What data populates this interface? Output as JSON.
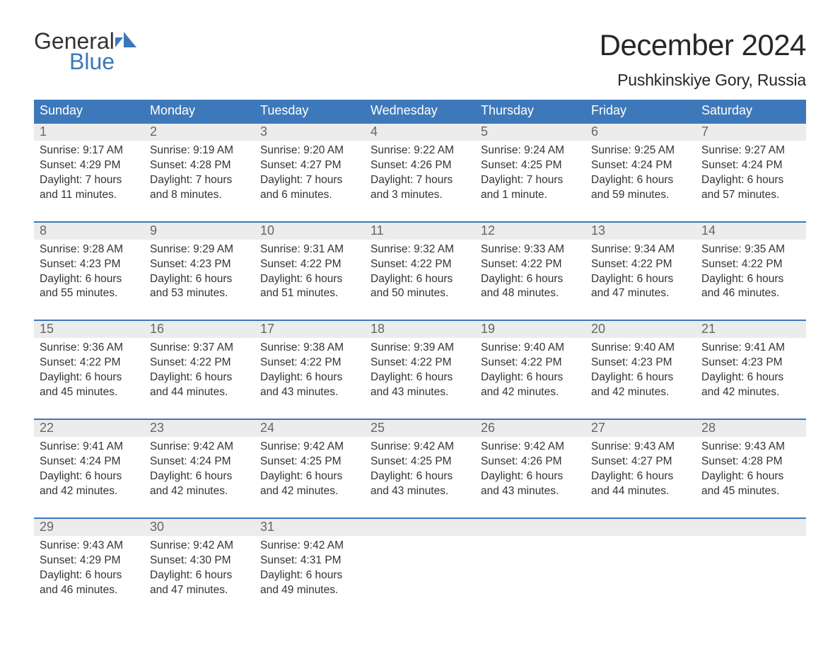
{
  "logo": {
    "word1": "General",
    "word2": "Blue",
    "word1_color": "#333333",
    "word2_color": "#3b78b8",
    "mark_color": "#3b78b8"
  },
  "header": {
    "month_title": "December 2024",
    "location": "Pushkinskiye Gory, Russia",
    "title_color": "#272727",
    "title_fontsize": 42,
    "location_fontsize": 23
  },
  "calendar": {
    "type": "table",
    "header_bg": "#3d79ba",
    "header_text_color": "#ffffff",
    "daynum_bg": "#ececec",
    "daynum_color": "#666666",
    "row_border_color": "#3d79ba",
    "cell_text_color": "#333333",
    "body_fontsize": 15.5,
    "columns": [
      "Sunday",
      "Monday",
      "Tuesday",
      "Wednesday",
      "Thursday",
      "Friday",
      "Saturday"
    ],
    "weeks": [
      [
        {
          "n": "1",
          "sr": "Sunrise: 9:17 AM",
          "ss": "Sunset: 4:29 PM",
          "d1": "Daylight: 7 hours",
          "d2": "and 11 minutes."
        },
        {
          "n": "2",
          "sr": "Sunrise: 9:19 AM",
          "ss": "Sunset: 4:28 PM",
          "d1": "Daylight: 7 hours",
          "d2": "and 8 minutes."
        },
        {
          "n": "3",
          "sr": "Sunrise: 9:20 AM",
          "ss": "Sunset: 4:27 PM",
          "d1": "Daylight: 7 hours",
          "d2": "and 6 minutes."
        },
        {
          "n": "4",
          "sr": "Sunrise: 9:22 AM",
          "ss": "Sunset: 4:26 PM",
          "d1": "Daylight: 7 hours",
          "d2": "and 3 minutes."
        },
        {
          "n": "5",
          "sr": "Sunrise: 9:24 AM",
          "ss": "Sunset: 4:25 PM",
          "d1": "Daylight: 7 hours",
          "d2": "and 1 minute."
        },
        {
          "n": "6",
          "sr": "Sunrise: 9:25 AM",
          "ss": "Sunset: 4:24 PM",
          "d1": "Daylight: 6 hours",
          "d2": "and 59 minutes."
        },
        {
          "n": "7",
          "sr": "Sunrise: 9:27 AM",
          "ss": "Sunset: 4:24 PM",
          "d1": "Daylight: 6 hours",
          "d2": "and 57 minutes."
        }
      ],
      [
        {
          "n": "8",
          "sr": "Sunrise: 9:28 AM",
          "ss": "Sunset: 4:23 PM",
          "d1": "Daylight: 6 hours",
          "d2": "and 55 minutes."
        },
        {
          "n": "9",
          "sr": "Sunrise: 9:29 AM",
          "ss": "Sunset: 4:23 PM",
          "d1": "Daylight: 6 hours",
          "d2": "and 53 minutes."
        },
        {
          "n": "10",
          "sr": "Sunrise: 9:31 AM",
          "ss": "Sunset: 4:22 PM",
          "d1": "Daylight: 6 hours",
          "d2": "and 51 minutes."
        },
        {
          "n": "11",
          "sr": "Sunrise: 9:32 AM",
          "ss": "Sunset: 4:22 PM",
          "d1": "Daylight: 6 hours",
          "d2": "and 50 minutes."
        },
        {
          "n": "12",
          "sr": "Sunrise: 9:33 AM",
          "ss": "Sunset: 4:22 PM",
          "d1": "Daylight: 6 hours",
          "d2": "and 48 minutes."
        },
        {
          "n": "13",
          "sr": "Sunrise: 9:34 AM",
          "ss": "Sunset: 4:22 PM",
          "d1": "Daylight: 6 hours",
          "d2": "and 47 minutes."
        },
        {
          "n": "14",
          "sr": "Sunrise: 9:35 AM",
          "ss": "Sunset: 4:22 PM",
          "d1": "Daylight: 6 hours",
          "d2": "and 46 minutes."
        }
      ],
      [
        {
          "n": "15",
          "sr": "Sunrise: 9:36 AM",
          "ss": "Sunset: 4:22 PM",
          "d1": "Daylight: 6 hours",
          "d2": "and 45 minutes."
        },
        {
          "n": "16",
          "sr": "Sunrise: 9:37 AM",
          "ss": "Sunset: 4:22 PM",
          "d1": "Daylight: 6 hours",
          "d2": "and 44 minutes."
        },
        {
          "n": "17",
          "sr": "Sunrise: 9:38 AM",
          "ss": "Sunset: 4:22 PM",
          "d1": "Daylight: 6 hours",
          "d2": "and 43 minutes."
        },
        {
          "n": "18",
          "sr": "Sunrise: 9:39 AM",
          "ss": "Sunset: 4:22 PM",
          "d1": "Daylight: 6 hours",
          "d2": "and 43 minutes."
        },
        {
          "n": "19",
          "sr": "Sunrise: 9:40 AM",
          "ss": "Sunset: 4:22 PM",
          "d1": "Daylight: 6 hours",
          "d2": "and 42 minutes."
        },
        {
          "n": "20",
          "sr": "Sunrise: 9:40 AM",
          "ss": "Sunset: 4:23 PM",
          "d1": "Daylight: 6 hours",
          "d2": "and 42 minutes."
        },
        {
          "n": "21",
          "sr": "Sunrise: 9:41 AM",
          "ss": "Sunset: 4:23 PM",
          "d1": "Daylight: 6 hours",
          "d2": "and 42 minutes."
        }
      ],
      [
        {
          "n": "22",
          "sr": "Sunrise: 9:41 AM",
          "ss": "Sunset: 4:24 PM",
          "d1": "Daylight: 6 hours",
          "d2": "and 42 minutes."
        },
        {
          "n": "23",
          "sr": "Sunrise: 9:42 AM",
          "ss": "Sunset: 4:24 PM",
          "d1": "Daylight: 6 hours",
          "d2": "and 42 minutes."
        },
        {
          "n": "24",
          "sr": "Sunrise: 9:42 AM",
          "ss": "Sunset: 4:25 PM",
          "d1": "Daylight: 6 hours",
          "d2": "and 42 minutes."
        },
        {
          "n": "25",
          "sr": "Sunrise: 9:42 AM",
          "ss": "Sunset: 4:25 PM",
          "d1": "Daylight: 6 hours",
          "d2": "and 43 minutes."
        },
        {
          "n": "26",
          "sr": "Sunrise: 9:42 AM",
          "ss": "Sunset: 4:26 PM",
          "d1": "Daylight: 6 hours",
          "d2": "and 43 minutes."
        },
        {
          "n": "27",
          "sr": "Sunrise: 9:43 AM",
          "ss": "Sunset: 4:27 PM",
          "d1": "Daylight: 6 hours",
          "d2": "and 44 minutes."
        },
        {
          "n": "28",
          "sr": "Sunrise: 9:43 AM",
          "ss": "Sunset: 4:28 PM",
          "d1": "Daylight: 6 hours",
          "d2": "and 45 minutes."
        }
      ],
      [
        {
          "n": "29",
          "sr": "Sunrise: 9:43 AM",
          "ss": "Sunset: 4:29 PM",
          "d1": "Daylight: 6 hours",
          "d2": "and 46 minutes."
        },
        {
          "n": "30",
          "sr": "Sunrise: 9:42 AM",
          "ss": "Sunset: 4:30 PM",
          "d1": "Daylight: 6 hours",
          "d2": "and 47 minutes."
        },
        {
          "n": "31",
          "sr": "Sunrise: 9:42 AM",
          "ss": "Sunset: 4:31 PM",
          "d1": "Daylight: 6 hours",
          "d2": "and 49 minutes."
        },
        null,
        null,
        null,
        null
      ]
    ]
  }
}
